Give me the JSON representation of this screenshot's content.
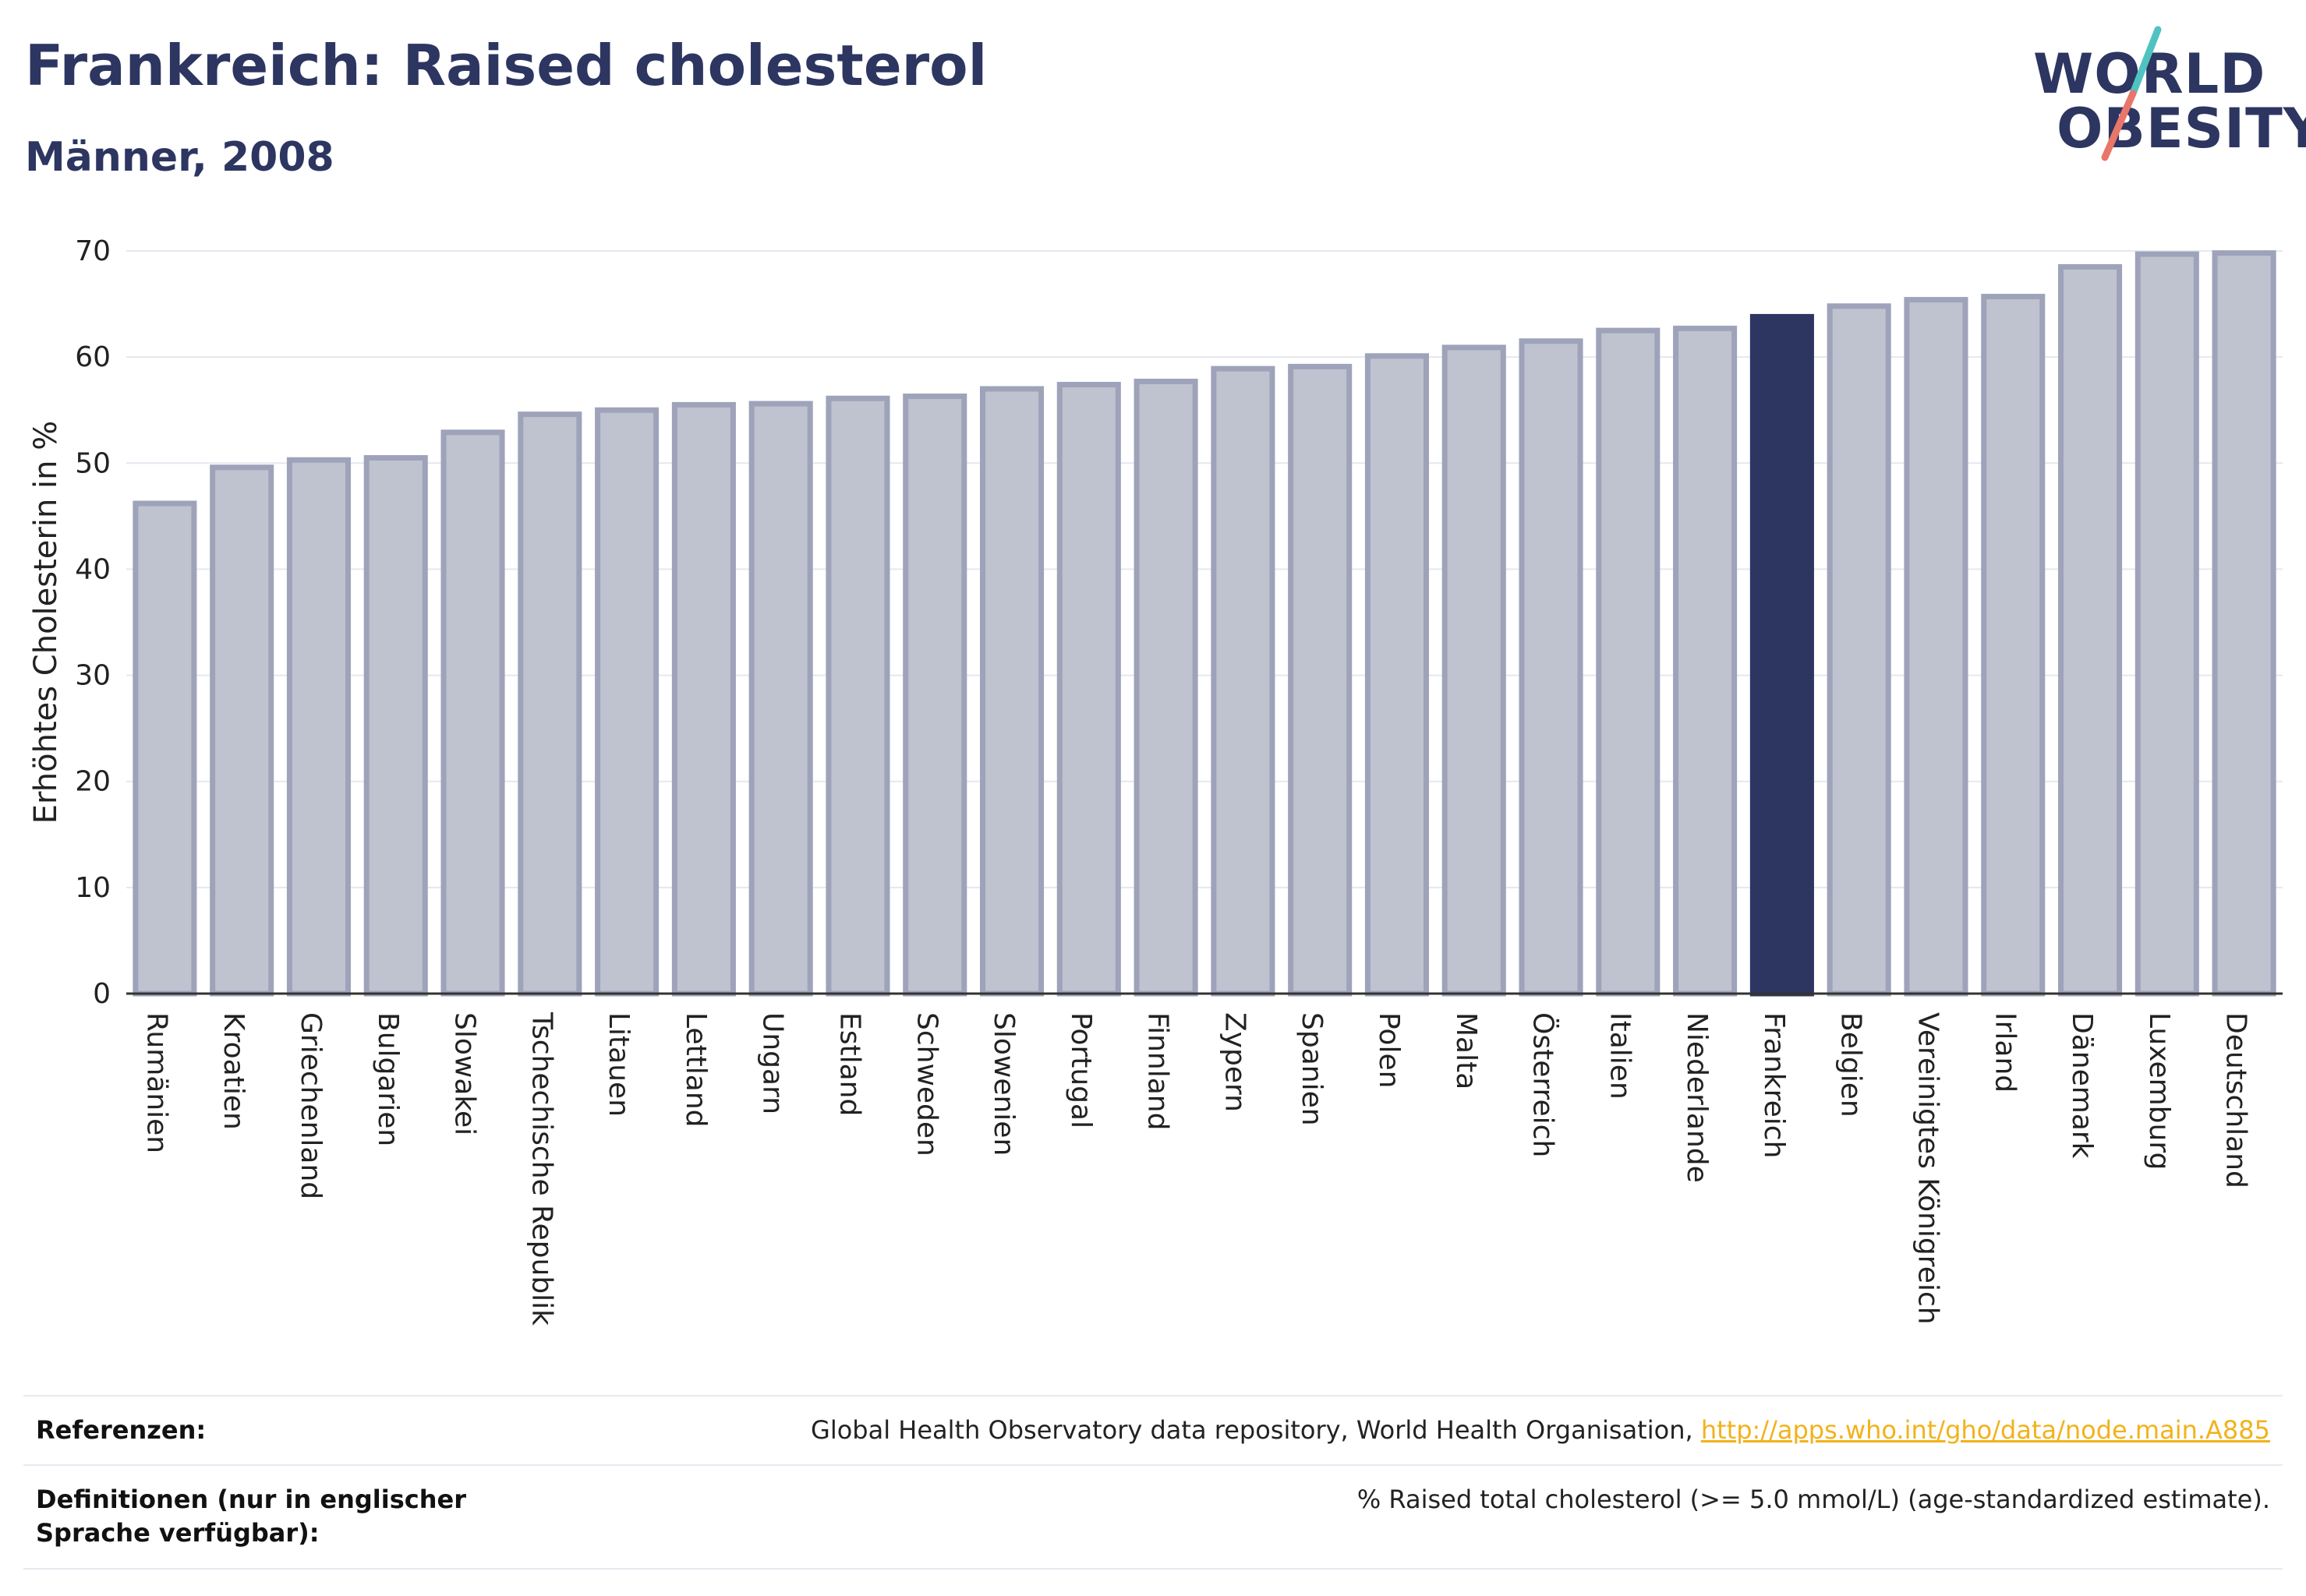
{
  "header": {
    "title": "Frankreich: Raised cholesterol",
    "subtitle": "Männer, 2008"
  },
  "logo": {
    "line1": "WORLD",
    "line2": "OBESITY",
    "accent_colors": [
      "#4fc3c0",
      "#e8766a"
    ]
  },
  "colors": {
    "bar_default": "#bfc2cf",
    "bar_border": "#9ea3ba",
    "bar_highlight": "#2d3561",
    "axis_text": "#222222",
    "grid": "#e6e8f0"
  },
  "chart_data": {
    "type": "bar",
    "title": "Frankreich: Raised cholesterol",
    "subtitle": "Männer, 2008",
    "ylabel": "Erhöhtes Cholesterin in %",
    "xlabel": "",
    "ylim": [
      0,
      70
    ],
    "yticks": [
      0,
      10,
      20,
      30,
      40,
      50,
      60,
      70
    ],
    "grid": true,
    "highlight": "Frankreich",
    "categories": [
      "Rumänien",
      "Kroatien",
      "Griechenland",
      "Bulgarien",
      "Slowakei",
      "Tschechische Republik",
      "Litauen",
      "Lettland",
      "Ungarn",
      "Estland",
      "Schweden",
      "Slowenien",
      "Portugal",
      "Finnland",
      "Zypern",
      "Spanien",
      "Polen",
      "Malta",
      "Österreich",
      "Italien",
      "Niederlande",
      "Frankreich",
      "Belgien",
      "Vereinigtes Königreich",
      "Irland",
      "Dänemark",
      "Luxemburg",
      "Deutschland"
    ],
    "values": [
      46.2,
      49.6,
      50.3,
      50.5,
      52.9,
      54.6,
      55.0,
      55.5,
      55.6,
      56.1,
      56.3,
      57.0,
      57.4,
      57.7,
      58.9,
      59.1,
      60.1,
      60.9,
      61.5,
      62.5,
      62.7,
      63.8,
      64.8,
      65.4,
      65.7,
      68.5,
      69.7,
      69.8
    ]
  },
  "footer": {
    "references_label": "Referenzen:",
    "references_text": "Global Health Observatory data repository, World Health Organisation,",
    "references_link": "http://apps.who.int/gho/data/node.main.A885",
    "definitions_label": "Definitionen (nur in englischer Sprache verfügbar):",
    "definitions_text": "% Raised total cholesterol (>= 5.0 mmol/L) (age-standardized estimate)."
  }
}
